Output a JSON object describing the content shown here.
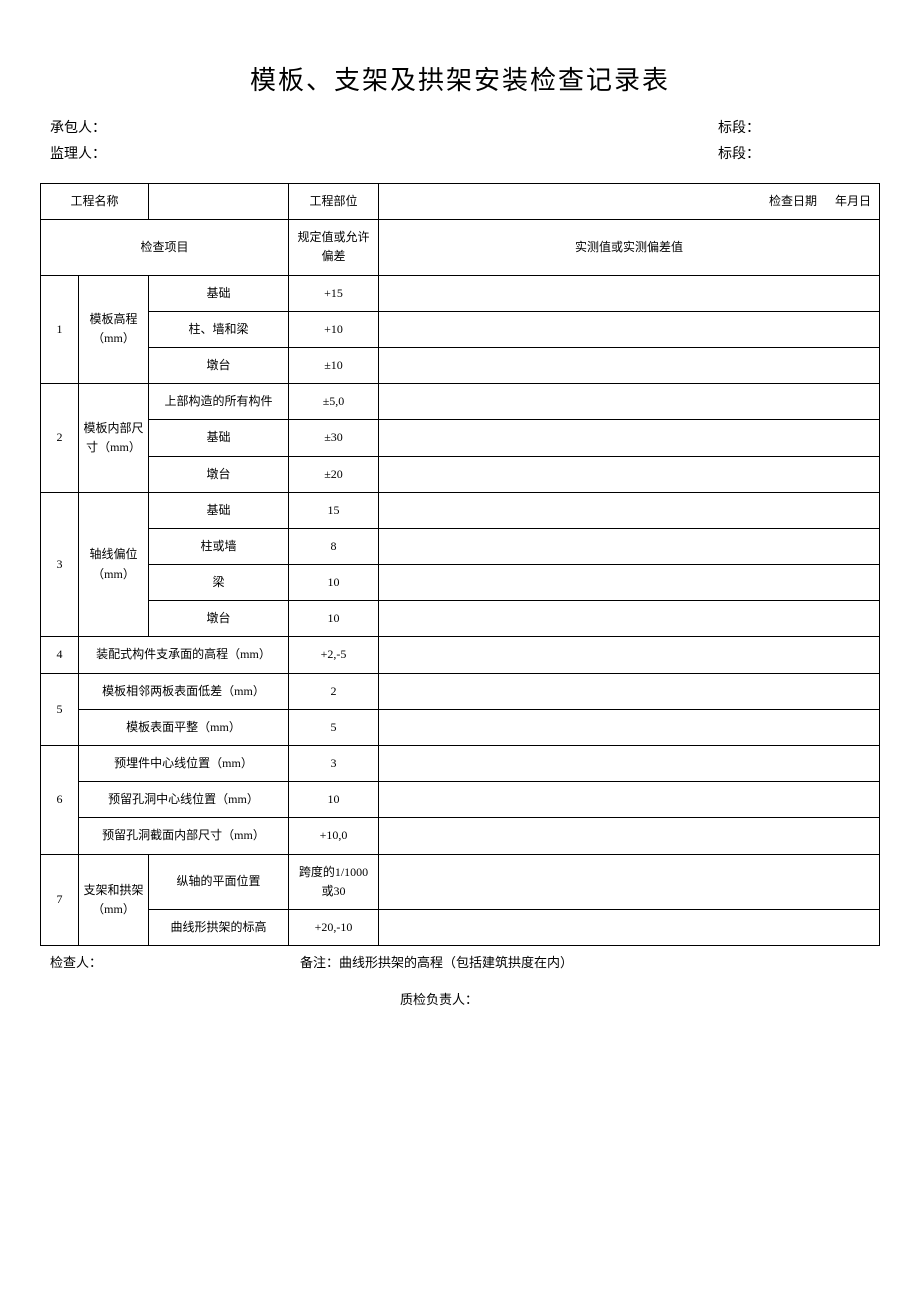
{
  "title": "模板、支架及拱架安装检查记录表",
  "header": {
    "contractor_label": "承包人：",
    "supervisor_label": "监理人：",
    "section_label": "标段："
  },
  "table_header": {
    "project_name_label": "工程名称",
    "project_part_label": "工程部位",
    "check_date_label": "检查日期",
    "check_date_value": "年月日",
    "check_item_label": "检查项目",
    "spec_label": "规定值或允许偏差",
    "measured_label": "实测值或实测偏差值"
  },
  "groups": [
    {
      "index": "1",
      "category": "模板高程（mm）",
      "rows": [
        {
          "sub": "基础",
          "spec": "+15"
        },
        {
          "sub": "柱、墙和梁",
          "spec": "+10"
        },
        {
          "sub": "墩台",
          "spec": "±10"
        }
      ]
    },
    {
      "index": "2",
      "category": "模板内部尺寸（mm）",
      "rows": [
        {
          "sub": "上部构造的所有构件",
          "spec": "±5,0"
        },
        {
          "sub": "基础",
          "spec": "±30"
        },
        {
          "sub": "墩台",
          "spec": "±20"
        }
      ]
    },
    {
      "index": "3",
      "category": "轴线偏位（mm）",
      "rows": [
        {
          "sub": "基础",
          "spec": "15"
        },
        {
          "sub": "柱或墙",
          "spec": "8"
        },
        {
          "sub": "梁",
          "spec": "10"
        },
        {
          "sub": "墩台",
          "spec": "10"
        }
      ]
    },
    {
      "index": "4",
      "category_full": "装配式构件支承面的高程（mm）",
      "rows": [
        {
          "spec": "+2,-5"
        }
      ]
    },
    {
      "index": "5",
      "rows": [
        {
          "sub_full": "模板相邻两板表面低差（mm）",
          "spec": "2"
        },
        {
          "sub_full": "模板表面平整（mm）",
          "spec": "5"
        }
      ]
    },
    {
      "index": "6",
      "rows": [
        {
          "sub_full": "预埋件中心线位置（mm）",
          "spec": "3"
        },
        {
          "sub_full": "预留孔洞中心线位置（mm）",
          "spec": "10"
        },
        {
          "sub_full": "预留孔洞截面内部尺寸（mm）",
          "spec": "+10,0"
        }
      ]
    },
    {
      "index": "7",
      "category": "支架和拱架（mm）",
      "rows": [
        {
          "sub": "纵轴的平面位置",
          "spec": "跨度的1/1000 或30"
        },
        {
          "sub": "曲线形拱架的标高",
          "spec": "+20,-10"
        }
      ]
    }
  ],
  "footer": {
    "inspector_label": "检查人：",
    "note_label": "备注：曲线形拱架的高程（包括建筑拱度在内）",
    "qc_label": "质检负责人："
  },
  "styling": {
    "background_color": "#ffffff",
    "text_color": "#000000",
    "border_color": "#000000",
    "title_fontsize": 26,
    "body_fontsize": 13,
    "cell_fontsize": 12
  }
}
